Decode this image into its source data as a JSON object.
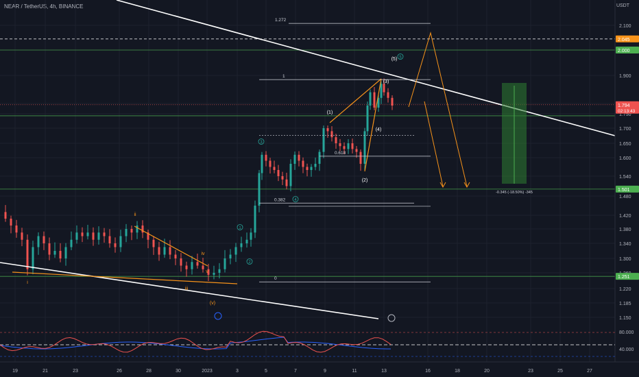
{
  "header": {
    "symbol_line": "NEAR / TetherUS, 4h, BINANCE",
    "currency": "USDT"
  },
  "chart_data": {
    "type": "candlestick",
    "price_ticks": [
      "2.100",
      "2.000",
      "1.900",
      "1.800",
      "1.750",
      "1.700",
      "1.650",
      "1.600",
      "1.540",
      "1.480",
      "1.420",
      "1.380",
      "1.340",
      "1.300",
      "1.260",
      "1.220",
      "1.185",
      "1.150"
    ],
    "tick_values": [
      2.1,
      2.0,
      1.9,
      1.8,
      1.75,
      1.7,
      1.65,
      1.6,
      1.54,
      1.48,
      1.42,
      1.38,
      1.34,
      1.3,
      1.26,
      1.22,
      1.185,
      1.15
    ],
    "date_ticks": [
      "19",
      "21",
      "23",
      "26",
      "28",
      "30",
      "2023",
      "3",
      "5",
      "7",
      "9",
      "11",
      "13",
      "16",
      "18",
      "20",
      "23",
      "25",
      "27"
    ],
    "price_labels": [
      {
        "text": "2.045",
        "value": 2.045,
        "color": "#f7931a"
      },
      {
        "text": "2.000",
        "value": 2.0,
        "color": "#4caf50"
      },
      {
        "text": "1.794",
        "sub": "02:13:43",
        "value": 1.794,
        "color": "#ef5350"
      },
      {
        "text": "1.501",
        "value": 1.501,
        "color": "#4caf50"
      },
      {
        "text": "1.251",
        "value": 1.251,
        "color": "#4caf50"
      }
    ],
    "horizontal_levels": [
      {
        "value": 2.045,
        "style": "dashed",
        "color": "#ffffff"
      },
      {
        "value": 2.0,
        "style": "solid",
        "color": "#4caf50"
      },
      {
        "value": 1.743,
        "style": "solid",
        "color": "#4caf50"
      },
      {
        "value": 1.501,
        "style": "solid",
        "color": "#4caf50"
      },
      {
        "value": 1.251,
        "style": "solid",
        "color": "#4caf50"
      }
    ],
    "fib_levels": [
      {
        "label": "1.272",
        "value": 2.108
      },
      {
        "label": "1",
        "value": 1.885
      },
      {
        "label": "0.618",
        "value": 1.605
      },
      {
        "label": "0.382",
        "value": 1.458
      },
      {
        "label": "0",
        "value": 1.237
      }
    ],
    "waves": [
      {
        "label": "i",
        "color": "#f7931a"
      },
      {
        "label": "ii",
        "color": "#f7931a"
      },
      {
        "label": "iii",
        "color": "#f7931a"
      },
      {
        "label": "iv",
        "color": "#f7931a"
      },
      {
        "label": "v",
        "color": "#f7931a"
      },
      {
        "label": "(v)",
        "color": "#f7931a"
      },
      {
        "label": "1",
        "color": "#26a69a"
      },
      {
        "label": "2",
        "color": "#26a69a"
      },
      {
        "label": "3",
        "color": "#26a69a"
      },
      {
        "label": "4",
        "color": "#26a69a"
      },
      {
        "label": "5",
        "color": "#26a69a"
      },
      {
        "label": "(1)",
        "color": "#ffffff"
      },
      {
        "label": "(2)",
        "color": "#ffffff"
      },
      {
        "label": "(3)",
        "color": "#ffffff"
      },
      {
        "label": "(4)",
        "color": "#ffffff"
      },
      {
        "label": "(5)",
        "color": "#ffffff"
      }
    ],
    "measure_label": "-0.345 (-18.50%) -345",
    "rsi_ticks": [
      "80.000",
      "40.000"
    ],
    "colors": {
      "up": "#26a69a",
      "down": "#ef5350",
      "bg": "#131722",
      "text": "#b2b5be",
      "trend": "#ffffff",
      "wedge": "#f7931a",
      "target": "#4caf50",
      "fib": "#d1d4dc"
    }
  }
}
